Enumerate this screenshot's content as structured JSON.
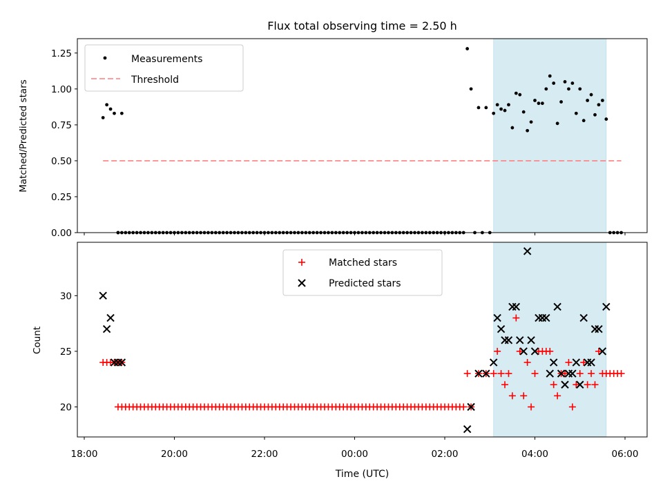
{
  "title": "Flux total observing time = 2.50 h",
  "xlabel": "Time (UTC)",
  "x_ticks": [
    "18:00",
    "20:00",
    "22:00",
    "00:00",
    "02:00",
    "04:00",
    "06:00"
  ],
  "colors": {
    "measurement": "#000000",
    "threshold": "#ff7f7f",
    "matched": "#ff0000",
    "predicted": "#000000",
    "shade": "#add8e6"
  },
  "chart_data": [
    {
      "type": "scatter",
      "panel": "top",
      "ylabel": "Matched/Predicted stars",
      "ylim": [
        0,
        1.35
      ],
      "y_ticks": [
        "0.00",
        "0.25",
        "0.50",
        "0.75",
        "1.00",
        "1.25"
      ],
      "x_range": [
        "18:00",
        "06:00"
      ],
      "shaded_interval": [
        "03:05",
        "05:35"
      ],
      "legend": {
        "placement": "top-left",
        "entries": [
          "Measurements",
          "Threshold"
        ]
      },
      "threshold": {
        "name": "Threshold",
        "value": 0.5,
        "x_start": "18:25",
        "x_end": "05:55"
      },
      "series": [
        {
          "name": "Measurements",
          "x": [
            "18:25",
            "18:30",
            "18:35",
            "18:40",
            "18:50",
            "18:45",
            "18:45",
            "18:50",
            "18:55",
            "19:00",
            "19:05",
            "19:10",
            "19:15",
            "19:20",
            "19:25",
            "19:30",
            "19:35",
            "19:40",
            "19:45",
            "19:50",
            "19:55",
            "20:00",
            "20:05",
            "20:10",
            "20:15",
            "20:20",
            "20:25",
            "20:30",
            "20:35",
            "20:40",
            "20:45",
            "20:50",
            "20:55",
            "21:00",
            "21:05",
            "21:10",
            "21:15",
            "21:20",
            "21:25",
            "21:30",
            "21:35",
            "21:40",
            "21:45",
            "21:50",
            "21:55",
            "22:00",
            "22:05",
            "22:10",
            "22:15",
            "22:20",
            "22:25",
            "22:30",
            "22:35",
            "22:40",
            "22:45",
            "22:50",
            "22:55",
            "23:00",
            "23:05",
            "23:10",
            "23:15",
            "23:20",
            "23:25",
            "23:30",
            "23:35",
            "23:40",
            "23:45",
            "23:50",
            "23:55",
            "00:00",
            "00:05",
            "00:10",
            "00:15",
            "00:20",
            "00:25",
            "00:30",
            "00:35",
            "00:40",
            "00:45",
            "00:50",
            "00:55",
            "01:00",
            "01:05",
            "01:10",
            "01:15",
            "01:20",
            "01:25",
            "01:30",
            "01:35",
            "01:40",
            "01:45",
            "01:50",
            "01:55",
            "02:00",
            "02:05",
            "02:10",
            "02:15",
            "02:20",
            "02:25",
            "02:30",
            "02:35",
            "02:45",
            "02:55",
            "03:05",
            "03:10",
            "03:15",
            "03:20",
            "03:25",
            "03:30",
            "03:35",
            "03:40",
            "03:45",
            "03:50",
            "03:55",
            "04:00",
            "04:05",
            "04:10",
            "04:15",
            "04:20",
            "04:25",
            "04:30",
            "04:35",
            "04:40",
            "04:45",
            "04:50",
            "04:55",
            "05:00",
            "05:05",
            "05:10",
            "05:15",
            "05:20",
            "05:25",
            "05:30",
            "05:35",
            "02:40",
            "02:50",
            "03:00",
            "05:40",
            "05:45",
            "05:50",
            "05:55"
          ],
          "y": [
            0.8,
            0.89,
            0.86,
            0.83,
            0.83,
            0.0,
            0.0,
            0.0,
            0.0,
            0.0,
            0.0,
            0.0,
            0.0,
            0.0,
            0.0,
            0.0,
            0.0,
            0.0,
            0.0,
            0.0,
            0.0,
            0.0,
            0.0,
            0.0,
            0.0,
            0.0,
            0.0,
            0.0,
            0.0,
            0.0,
            0.0,
            0.0,
            0.0,
            0.0,
            0.0,
            0.0,
            0.0,
            0.0,
            0.0,
            0.0,
            0.0,
            0.0,
            0.0,
            0.0,
            0.0,
            0.0,
            0.0,
            0.0,
            0.0,
            0.0,
            0.0,
            0.0,
            0.0,
            0.0,
            0.0,
            0.0,
            0.0,
            0.0,
            0.0,
            0.0,
            0.0,
            0.0,
            0.0,
            0.0,
            0.0,
            0.0,
            0.0,
            0.0,
            0.0,
            0.0,
            0.0,
            0.0,
            0.0,
            0.0,
            0.0,
            0.0,
            0.0,
            0.0,
            0.0,
            0.0,
            0.0,
            0.0,
            0.0,
            0.0,
            0.0,
            0.0,
            0.0,
            0.0,
            0.0,
            0.0,
            0.0,
            0.0,
            0.0,
            0.0,
            0.0,
            0.0,
            0.0,
            0.0,
            0.0,
            1.28,
            1.0,
            0.87,
            0.87,
            0.83,
            0.89,
            0.86,
            0.85,
            0.89,
            0.73,
            0.97,
            0.96,
            0.84,
            0.71,
            0.77,
            0.92,
            0.9,
            0.9,
            1.0,
            1.09,
            1.04,
            0.76,
            0.91,
            1.05,
            1.0,
            1.04,
            0.83,
            1.0,
            0.78,
            0.92,
            0.96,
            0.82,
            0.89,
            0.92,
            0.79,
            0.0,
            0.0,
            0.0,
            0.0,
            0.0,
            0.0,
            0.0
          ]
        }
      ]
    },
    {
      "type": "scatter",
      "panel": "bottom",
      "ylabel": "Count",
      "ylim": [
        17.3,
        34.8
      ],
      "y_ticks": [
        "20",
        "25",
        "30"
      ],
      "x_range": [
        "18:00",
        "06:00"
      ],
      "shaded_interval": [
        "03:05",
        "05:35"
      ],
      "legend": {
        "placement": "top-center",
        "entries": [
          "Matched stars",
          "Predicted stars"
        ]
      },
      "series": [
        {
          "name": "Matched stars",
          "marker": "+",
          "x": [
            "18:25",
            "18:30",
            "18:35",
            "18:40",
            "18:45",
            "18:50",
            "18:45",
            "18:50",
            "18:55",
            "19:00",
            "19:05",
            "19:10",
            "19:15",
            "19:20",
            "19:25",
            "19:30",
            "19:35",
            "19:40",
            "19:45",
            "19:50",
            "19:55",
            "20:00",
            "20:05",
            "20:10",
            "20:15",
            "20:20",
            "20:25",
            "20:30",
            "20:35",
            "20:40",
            "20:45",
            "20:50",
            "20:55",
            "21:00",
            "21:05",
            "21:10",
            "21:15",
            "21:20",
            "21:25",
            "21:30",
            "21:35",
            "21:40",
            "21:45",
            "21:50",
            "21:55",
            "22:00",
            "22:05",
            "22:10",
            "22:15",
            "22:20",
            "22:25",
            "22:30",
            "22:35",
            "22:40",
            "22:45",
            "22:50",
            "22:55",
            "23:00",
            "23:05",
            "23:10",
            "23:15",
            "23:20",
            "23:25",
            "23:30",
            "23:35",
            "23:40",
            "23:45",
            "23:50",
            "23:55",
            "00:00",
            "00:05",
            "00:10",
            "00:15",
            "00:20",
            "00:25",
            "00:30",
            "00:35",
            "00:40",
            "00:45",
            "00:50",
            "00:55",
            "01:00",
            "01:05",
            "01:10",
            "01:15",
            "01:20",
            "01:25",
            "01:30",
            "01:35",
            "01:40",
            "01:45",
            "01:50",
            "01:55",
            "02:00",
            "02:05",
            "02:10",
            "02:15",
            "02:20",
            "02:25",
            "02:30",
            "02:35",
            "02:45",
            "02:55",
            "03:05",
            "03:10",
            "03:15",
            "03:20",
            "03:25",
            "03:30",
            "03:35",
            "03:40",
            "03:45",
            "03:50",
            "03:55",
            "04:00",
            "04:05",
            "04:10",
            "04:15",
            "04:20",
            "04:25",
            "04:30",
            "04:35",
            "04:40",
            "04:45",
            "04:50",
            "04:55",
            "05:00",
            "05:05",
            "05:10",
            "05:15",
            "05:20",
            "05:25",
            "05:30",
            "05:35",
            "05:40",
            "05:45",
            "05:50",
            "05:55"
          ],
          "y": [
            24,
            24,
            24,
            24,
            24,
            24,
            20,
            20,
            20,
            20,
            20,
            20,
            20,
            20,
            20,
            20,
            20,
            20,
            20,
            20,
            20,
            20,
            20,
            20,
            20,
            20,
            20,
            20,
            20,
            20,
            20,
            20,
            20,
            20,
            20,
            20,
            20,
            20,
            20,
            20,
            20,
            20,
            20,
            20,
            20,
            20,
            20,
            20,
            20,
            20,
            20,
            20,
            20,
            20,
            20,
            20,
            20,
            20,
            20,
            20,
            20,
            20,
            20,
            20,
            20,
            20,
            20,
            20,
            20,
            20,
            20,
            20,
            20,
            20,
            20,
            20,
            20,
            20,
            20,
            20,
            20,
            20,
            20,
            20,
            20,
            20,
            20,
            20,
            20,
            20,
            20,
            20,
            20,
            20,
            20,
            20,
            20,
            20,
            20,
            23,
            20,
            23,
            23,
            23,
            25,
            23,
            22,
            23,
            21,
            28,
            25,
            21,
            24,
            20,
            23,
            25,
            25,
            25,
            25,
            22,
            21,
            23,
            23,
            24,
            20,
            22,
            23,
            24,
            22,
            23,
            22,
            25,
            23,
            23,
            23,
            23,
            23,
            23
          ]
        },
        {
          "name": "Predicted stars",
          "marker": "x",
          "x": [
            "18:25",
            "18:30",
            "18:35",
            "18:40",
            "18:45",
            "18:50",
            "02:30",
            "02:35",
            "02:45",
            "02:55",
            "03:05",
            "03:10",
            "03:15",
            "03:20",
            "03:25",
            "03:30",
            "03:35",
            "03:40",
            "03:45",
            "03:50",
            "03:55",
            "04:00",
            "04:05",
            "04:10",
            "04:15",
            "04:20",
            "04:25",
            "04:30",
            "04:35",
            "04:40",
            "04:45",
            "04:50",
            "04:55",
            "05:00",
            "05:05",
            "05:10",
            "05:15",
            "05:20",
            "05:25",
            "05:30",
            "05:35"
          ],
          "y": [
            30,
            27,
            28,
            24,
            24,
            24,
            18,
            20,
            23,
            23,
            24,
            28,
            27,
            26,
            26,
            29,
            29,
            26,
            25,
            34,
            26,
            25,
            28,
            28,
            28,
            23,
            24,
            29,
            23,
            22,
            23,
            23,
            24,
            22,
            28,
            24,
            24,
            27,
            27,
            25,
            29
          ]
        }
      ]
    }
  ]
}
